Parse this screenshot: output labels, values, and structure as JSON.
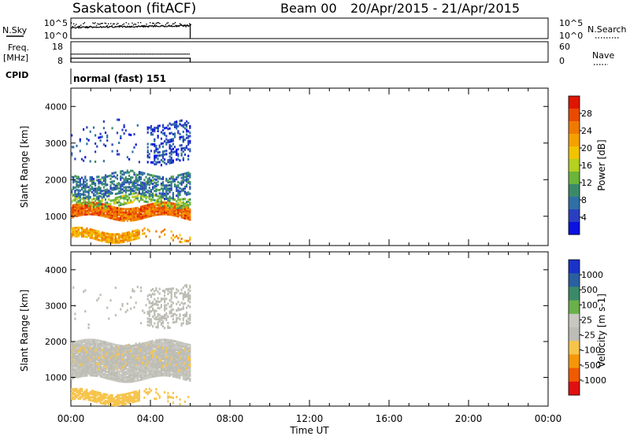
{
  "header": {
    "station": "Saskatoon (fitACF)",
    "beam": "Beam 00",
    "date_range": "20/Apr/2015 - 21/Apr/2015"
  },
  "panels": {
    "nsky": {
      "left_label": "N.Sky",
      "right_label": "N.Search",
      "left_ticks": [
        "10^5",
        "10^0"
      ],
      "right_ticks": [
        "10^5",
        "10^0"
      ]
    },
    "freq": {
      "left_label_1": "Freq.",
      "left_label_2": "[MHz]",
      "right_label": "Nave",
      "left_ticks": [
        "18",
        "8"
      ],
      "right_ticks": [
        "60",
        "0"
      ]
    },
    "cpid": {
      "label": "CPID",
      "value": "normal (fast) 151"
    }
  },
  "x_axis": {
    "label": "Time UT",
    "ticks": [
      "00:00",
      "04:00",
      "08:00",
      "12:00",
      "16:00",
      "20:00",
      "00:00"
    ]
  },
  "colors": {
    "power_scale": [
      "#0a12e0",
      "#2a3fc0",
      "#2f6fa5",
      "#3a8a6a",
      "#6ab53a",
      "#b5d020",
      "#f2c400",
      "#f5a000",
      "#f07a00",
      "#e84a00",
      "#e01500"
    ],
    "velocity_scale": [
      "#e01010",
      "#f05a00",
      "#f5960a",
      "#f7c44a",
      "#bdbdb5",
      "#c8c8c0",
      "#6ab04a",
      "#3a8a6a",
      "#2a5fa0",
      "#1a32c8"
    ]
  },
  "chart_data": [
    {
      "type": "heatmap",
      "title": "",
      "ylabel": "Slant Range [km]",
      "xlabel": "",
      "ylim": [
        200,
        4500
      ],
      "xlim_hours": [
        0,
        24
      ],
      "yticks": [
        "1000",
        "2000",
        "3000",
        "4000"
      ],
      "colorbar": {
        "label": "Power [dB]",
        "range": [
          0,
          32
        ],
        "ticks": [
          "4",
          "8",
          "12",
          "16",
          "20",
          "24",
          "28"
        ]
      },
      "data_coverage_hours": [
        0,
        6
      ],
      "bands": [
        {
          "range_km": [
            1000,
            1350
          ],
          "value": 26
        },
        {
          "range_km": [
            400,
            650
          ],
          "value": 22
        },
        {
          "range_km": [
            1350,
            1600
          ],
          "value": 14
        },
        {
          "range_km": [
            1600,
            2200
          ],
          "value": 8
        },
        {
          "range_km": [
            2500,
            3600
          ],
          "value": 5
        }
      ]
    },
    {
      "type": "heatmap",
      "title": "",
      "ylabel": "Slant Range [km]",
      "xlabel": "Time UT",
      "ylim": [
        200,
        4500
      ],
      "xlim_hours": [
        0,
        24
      ],
      "yticks": [
        "1000",
        "2000",
        "3000",
        "4000"
      ],
      "colorbar": {
        "label": "Velocity [m s-1]",
        "range": [
          -1000,
          1000
        ],
        "ticks": [
          "1000",
          "500",
          "100",
          "25",
          "-25",
          "-100",
          "-500",
          "-1000"
        ]
      },
      "data_coverage_hours": [
        0,
        6
      ],
      "bands": [
        {
          "range_km": [
            1000,
            2000
          ],
          "value": 0
        },
        {
          "range_km": [
            350,
            650
          ],
          "value": -300
        },
        {
          "range_km": [
            1300,
            1900
          ],
          "value": -150
        },
        {
          "range_km": [
            2500,
            3600
          ],
          "value": -80
        }
      ]
    }
  ]
}
